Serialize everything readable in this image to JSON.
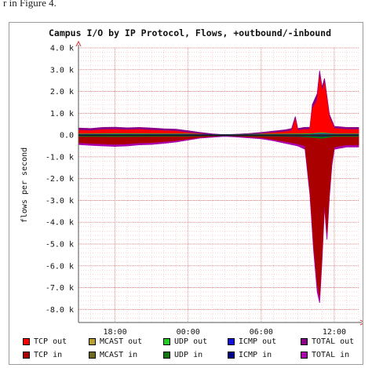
{
  "page": {
    "caption": "r in Figure 4."
  },
  "chart_data": {
    "type": "area",
    "title": "Campus I/O by IP Protocol, Flows, +outbound/-inbound",
    "ylabel": "flows per second",
    "ylim": [
      -8.6,
      4.0
    ],
    "yticks": [
      4.0,
      3.0,
      2.0,
      1.0,
      0.0,
      -1.0,
      -2.0,
      -3.0,
      -4.0,
      -5.0,
      -6.0,
      -7.0,
      -8.0
    ],
    "ytick_labels": [
      "4.0 k",
      "3.0 k",
      "2.0 k",
      "1.0 k",
      "0.0",
      "-1.0 k",
      "-2.0 k",
      "-3.0 k",
      "-4.0 k",
      "-5.0 k",
      "-6.0 k",
      "-7.0 k",
      "-8.0 k"
    ],
    "y_unit": "k flows/s",
    "xlim": [
      15,
      38
    ],
    "xticks": [
      18,
      24,
      30,
      36
    ],
    "xtick_labels": [
      "18:00",
      "00:00",
      "06:00",
      "12:00"
    ],
    "x_unit": "hour of day (continuous; 24 = 00:00 next day)",
    "grid": true,
    "legend_position": "bottom",
    "series": [
      {
        "name": "TCP out",
        "color": "#ff0000",
        "direction": "out",
        "x": [
          15.0,
          16.0,
          17.0,
          18.0,
          19.0,
          20.0,
          21.0,
          22.0,
          23.0,
          24.0,
          25.0,
          26.0,
          27.0,
          28.0,
          29.0,
          30.0,
          31.0,
          32.0,
          32.5,
          32.8,
          33.0,
          33.5,
          34.0,
          34.2,
          34.6,
          34.8,
          35.0,
          35.2,
          35.6,
          36.0,
          37.0,
          38.0
        ],
        "values": [
          0.22,
          0.2,
          0.24,
          0.25,
          0.23,
          0.25,
          0.22,
          0.2,
          0.18,
          0.1,
          0.05,
          0.0,
          -0.04,
          -0.02,
          0.0,
          0.05,
          0.1,
          0.15,
          0.2,
          0.7,
          0.2,
          0.25,
          0.25,
          1.2,
          1.6,
          2.7,
          2.0,
          2.4,
          0.8,
          0.3,
          0.25,
          0.25
        ]
      },
      {
        "name": "MCAST out",
        "color": "#b8a030",
        "direction": "out",
        "x": [
          15.0,
          24.0,
          30.0,
          34.0,
          35.0,
          36.0,
          38.0
        ],
        "values": [
          0.01,
          0.01,
          0.01,
          0.01,
          0.02,
          0.01,
          0.01
        ]
      },
      {
        "name": "UDP out",
        "color": "#22cc22",
        "direction": "out",
        "x": [
          15.0,
          18.0,
          24.0,
          26.0,
          30.0,
          33.0,
          34.0,
          35.0,
          36.0,
          38.0
        ],
        "values": [
          0.05,
          0.06,
          0.05,
          0.02,
          0.04,
          0.05,
          0.06,
          0.1,
          0.05,
          0.05
        ]
      },
      {
        "name": "ICMP out",
        "color": "#1111dd",
        "direction": "out",
        "x": [
          15.0,
          24.0,
          30.0,
          34.0,
          35.0,
          36.0,
          38.0
        ],
        "values": [
          0.03,
          0.03,
          0.02,
          0.03,
          0.05,
          0.03,
          0.03
        ]
      },
      {
        "name": "TOTAL out",
        "color": "#880088",
        "direction": "out",
        "x": [
          15.0,
          16.0,
          17.0,
          18.0,
          19.0,
          20.0,
          21.0,
          22.0,
          23.0,
          24.0,
          25.0,
          26.0,
          27.0,
          28.0,
          29.0,
          30.0,
          31.0,
          32.0,
          32.5,
          32.8,
          33.0,
          33.5,
          34.0,
          34.2,
          34.6,
          34.8,
          35.0,
          35.2,
          35.6,
          36.0,
          37.0,
          38.0
        ],
        "values": [
          0.32,
          0.3,
          0.35,
          0.36,
          0.33,
          0.35,
          0.32,
          0.29,
          0.27,
          0.2,
          0.12,
          0.05,
          0.02,
          0.04,
          0.07,
          0.12,
          0.18,
          0.24,
          0.3,
          0.85,
          0.3,
          0.35,
          0.36,
          1.4,
          1.9,
          2.95,
          2.2,
          2.6,
          0.95,
          0.4,
          0.35,
          0.35
        ]
      },
      {
        "name": "TCP in",
        "color": "#aa0000",
        "direction": "in",
        "x": [
          15.0,
          16.0,
          17.0,
          18.0,
          19.0,
          20.0,
          21.0,
          22.0,
          23.0,
          24.0,
          25.0,
          26.0,
          27.0,
          28.0,
          29.0,
          30.0,
          31.0,
          32.0,
          33.0,
          33.6,
          34.0,
          34.3,
          34.6,
          34.8,
          35.0,
          35.2,
          35.4,
          35.6,
          35.8,
          36.0,
          37.0,
          38.0
        ],
        "values": [
          -0.35,
          -0.38,
          -0.4,
          -0.42,
          -0.4,
          -0.36,
          -0.34,
          -0.3,
          -0.25,
          -0.18,
          -0.1,
          -0.06,
          -0.03,
          -0.05,
          -0.08,
          -0.12,
          -0.2,
          -0.3,
          -0.4,
          -0.5,
          -2.5,
          -5.0,
          -6.8,
          -7.4,
          -5.4,
          -3.0,
          -4.5,
          -2.6,
          -1.2,
          -0.55,
          -0.45,
          -0.45
        ]
      },
      {
        "name": "MCAST in",
        "color": "#6a6a1a",
        "direction": "in",
        "x": [
          15.0,
          24.0,
          30.0,
          34.0,
          35.0,
          36.0,
          38.0
        ],
        "values": [
          -0.01,
          -0.01,
          -0.01,
          -0.02,
          -0.03,
          -0.01,
          -0.01
        ]
      },
      {
        "name": "UDP in",
        "color": "#117711",
        "direction": "in",
        "x": [
          15.0,
          18.0,
          24.0,
          26.0,
          30.0,
          33.0,
          34.0,
          35.0,
          36.0,
          38.0
        ],
        "values": [
          -0.06,
          -0.07,
          -0.05,
          -0.03,
          -0.04,
          -0.06,
          -0.1,
          -0.15,
          -0.06,
          -0.06
        ]
      },
      {
        "name": "ICMP in",
        "color": "#000088",
        "direction": "in",
        "x": [
          15.0,
          24.0,
          30.0,
          34.0,
          35.0,
          36.0,
          38.0
        ],
        "values": [
          -0.02,
          -0.02,
          -0.02,
          -0.04,
          -0.06,
          -0.02,
          -0.02
        ]
      },
      {
        "name": "TOTAL in",
        "color": "#aa00aa",
        "direction": "in",
        "x": [
          15.0,
          16.0,
          17.0,
          18.0,
          19.0,
          20.0,
          21.0,
          22.0,
          23.0,
          24.0,
          25.0,
          26.0,
          27.0,
          28.0,
          29.0,
          30.0,
          31.0,
          32.0,
          33.0,
          33.6,
          34.0,
          34.3,
          34.6,
          34.8,
          35.0,
          35.2,
          35.4,
          35.6,
          35.8,
          36.0,
          37.0,
          38.0
        ],
        "values": [
          -0.44,
          -0.47,
          -0.5,
          -0.52,
          -0.5,
          -0.45,
          -0.43,
          -0.38,
          -0.32,
          -0.23,
          -0.14,
          -0.1,
          -0.06,
          -0.09,
          -0.13,
          -0.17,
          -0.26,
          -0.38,
          -0.5,
          -0.65,
          -2.75,
          -5.3,
          -7.2,
          -7.7,
          -5.7,
          -3.3,
          -4.8,
          -2.85,
          -1.4,
          -0.65,
          -0.55,
          -0.55
        ]
      }
    ]
  }
}
